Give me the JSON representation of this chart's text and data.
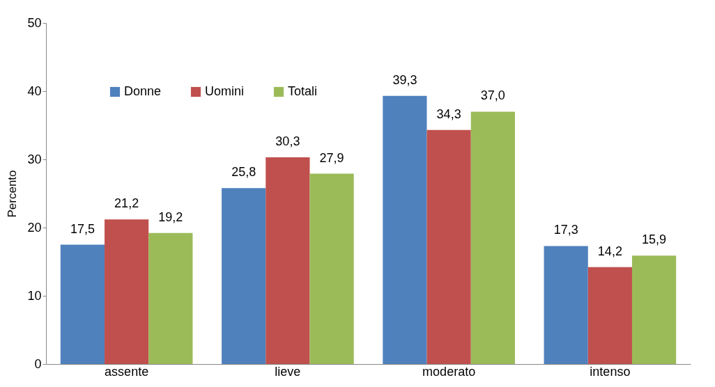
{
  "chart_data": {
    "type": "bar",
    "ylabel": "Percento",
    "categories": [
      "assente",
      "lieve",
      "moderato",
      "intenso"
    ],
    "series": [
      {
        "name": "Donne",
        "color": "#4f81bd",
        "values": [
          17.5,
          25.8,
          39.3,
          17.3
        ],
        "value_labels": [
          "17,5",
          "25,8",
          "39,3",
          "17,3"
        ]
      },
      {
        "name": "Uomini",
        "color": "#c0504d",
        "values": [
          21.2,
          30.3,
          34.3,
          14.2
        ],
        "value_labels": [
          "21,2",
          "30,3",
          "34,3",
          "14,2"
        ]
      },
      {
        "name": "Totali",
        "color": "#9bbb59",
        "values": [
          19.2,
          27.9,
          37.0,
          15.9
        ],
        "value_labels": [
          "19,2",
          "27,9",
          "37,0",
          "15,9"
        ]
      }
    ],
    "ylim": [
      0,
      50
    ],
    "yticks": [
      0,
      10,
      20,
      30,
      40,
      50
    ],
    "grid": false,
    "legend": "top left"
  }
}
